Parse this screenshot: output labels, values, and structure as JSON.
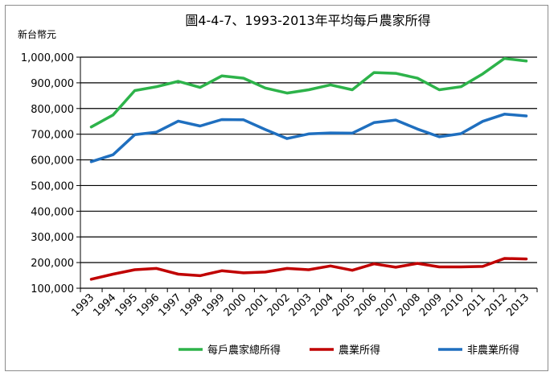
{
  "chart_data": {
    "type": "line",
    "title": "圖4-4-7、1993-2013年平均每戶農家所得",
    "ylabel": "新台幣元",
    "xlabel": "",
    "ylim": [
      100000,
      1000000
    ],
    "yticks": [
      100000,
      200000,
      300000,
      400000,
      500000,
      600000,
      700000,
      800000,
      900000,
      1000000
    ],
    "ytick_labels": [
      "100,000",
      "200,000",
      "300,000",
      "400,000",
      "500,000",
      "600,000",
      "700,000",
      "800,000",
      "900,000",
      "1,000,000"
    ],
    "categories": [
      "1993",
      "1994",
      "1995",
      "1996",
      "1997",
      "1998",
      "1999",
      "2000",
      "2001",
      "2002",
      "2003",
      "2004",
      "2005",
      "2006",
      "2007",
      "2008",
      "2009",
      "2010",
      "2011",
      "2012",
      "2013"
    ],
    "grid": "horizontal",
    "legend_position": "bottom",
    "series": [
      {
        "name": "每戶農家總所得",
        "color": "#2db34a",
        "values": [
          728000,
          775000,
          870000,
          885000,
          906000,
          882000,
          927000,
          918000,
          880000,
          860000,
          873000,
          892000,
          873000,
          940000,
          937000,
          918000,
          873000,
          885000,
          935000,
          995000,
          985000
        ]
      },
      {
        "name": "農業所得",
        "color": "#c00000",
        "values": [
          135000,
          155000,
          172000,
          177000,
          155000,
          149000,
          168000,
          160000,
          163000,
          177000,
          172000,
          187000,
          170000,
          195000,
          182000,
          197000,
          183000,
          183000,
          185000,
          216000,
          214000
        ]
      },
      {
        "name": "非農業所得",
        "color": "#1f6fbf",
        "values": [
          593000,
          620000,
          698000,
          708000,
          751000,
          732000,
          757000,
          756000,
          718000,
          683000,
          701000,
          705000,
          704000,
          745000,
          755000,
          720000,
          690000,
          702000,
          750000,
          778000,
          771000
        ]
      }
    ]
  }
}
